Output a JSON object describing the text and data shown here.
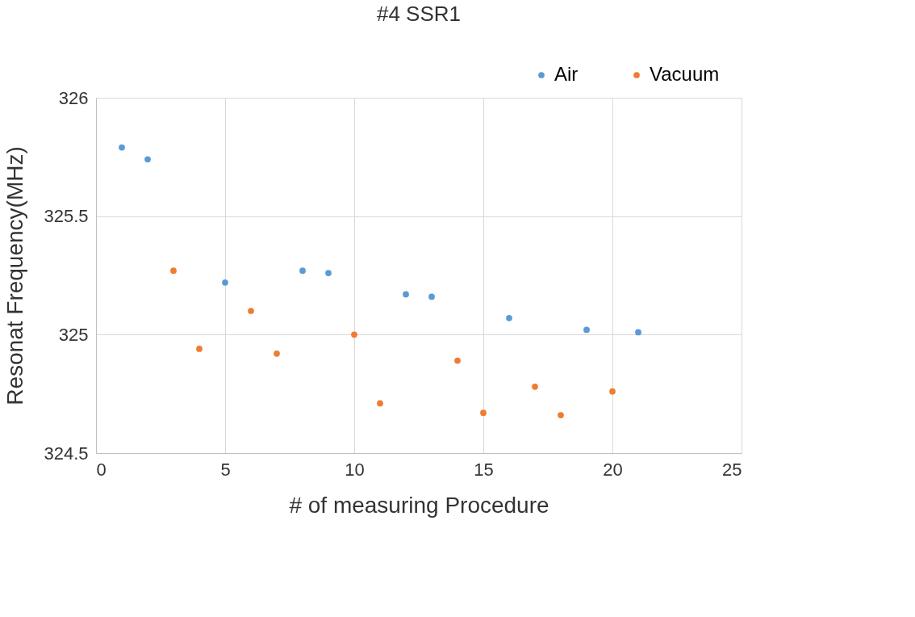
{
  "chart_data": {
    "type": "scatter",
    "title": "#4 SSR1",
    "xlabel": "# of measuring Procedure",
    "ylabel": "Resonat Frequency(MHz)",
    "series": [
      {
        "name": "Air",
        "color": "#5b9bd5",
        "x": [
          1,
          2,
          5,
          8,
          9,
          12,
          13,
          16,
          19,
          21
        ],
        "values": [
          325.79,
          325.74,
          325.22,
          325.27,
          325.26,
          325.17,
          325.16,
          325.07,
          325.02,
          325.01
        ]
      },
      {
        "name": "Vacuum",
        "color": "#ed7d31",
        "x": [
          3,
          4,
          6,
          7,
          10,
          11,
          14,
          15,
          17,
          18,
          20
        ],
        "values": [
          325.27,
          324.94,
          325.1,
          324.92,
          325.0,
          324.71,
          324.89,
          324.67,
          324.78,
          324.66,
          324.76
        ]
      }
    ],
    "xlim": [
      0,
      25
    ],
    "xticks": [
      0,
      5,
      10,
      15,
      20,
      25
    ],
    "ylim": [
      324.5,
      326
    ],
    "yticks": [
      324.5,
      325,
      325.5,
      326
    ],
    "grid": true,
    "legend": "top right",
    "marker": "circle"
  }
}
